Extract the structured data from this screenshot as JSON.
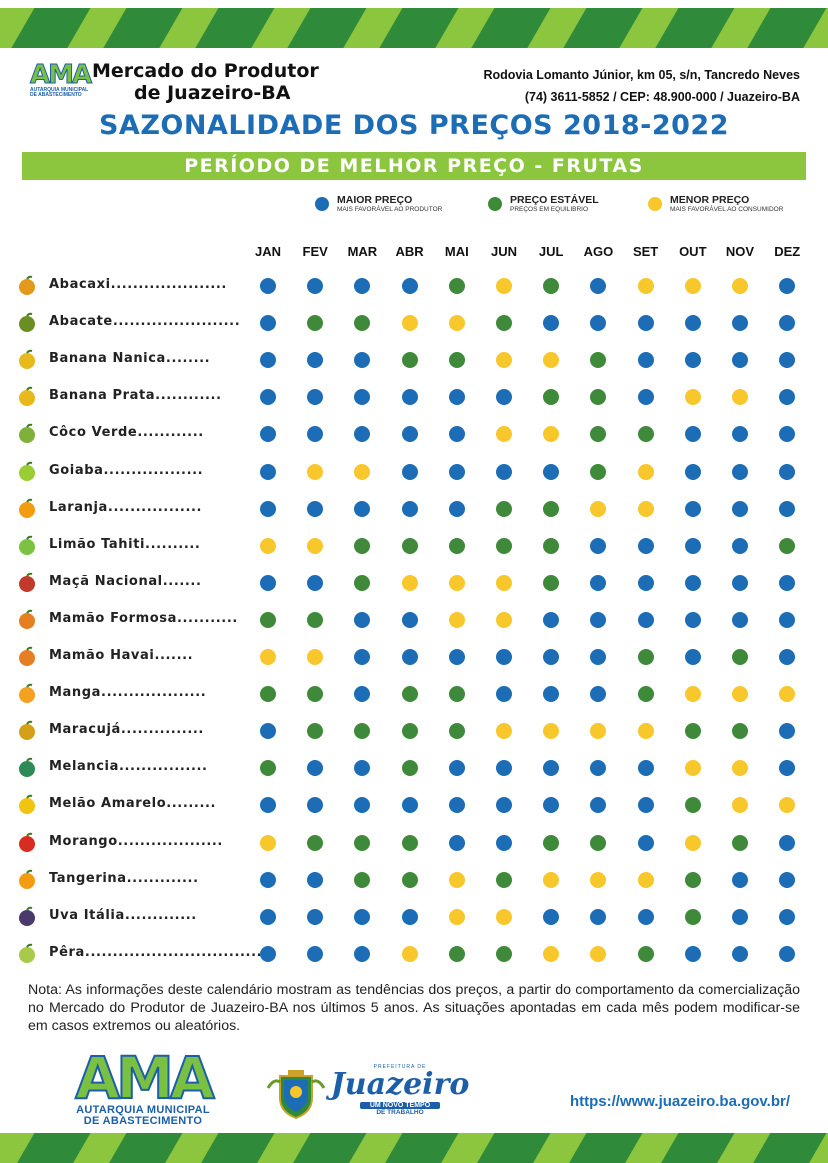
{
  "header": {
    "logo_text": "AMA",
    "logo_sub": "AUTARQUIA MUNICIPAL DE ABASTECIMENTO",
    "brand_line1": "Mercado do Produtor",
    "brand_line2": "de Juazeiro-BA",
    "address_line1": "Rodovia Lomanto Júnior,  km 05,  s/n,  Tancredo Neves",
    "address_line2": "(74)  3611-5852    /  CEP:  48.900-000  / Juazeiro-BA"
  },
  "title": "SAZONALIDADE DOS PREÇOS 2018-2022",
  "subtitle": "PERÍODO DE MELHOR PREÇO - FRUTAS",
  "colors": {
    "blue": "#1c6db5",
    "green": "#3f8a3a",
    "yellow": "#f7c72c",
    "lime": "#8cc63f"
  },
  "legend": [
    {
      "color": "blue",
      "title": "MAIOR PREÇO",
      "subtitle": "MAIS FAVORÁVEL AO PRODUTOR"
    },
    {
      "color": "green",
      "title": "PREÇO ESTÁVEL",
      "subtitle": "PREÇOS EM EQUILIBRIO"
    },
    {
      "color": "yellow",
      "title": "MENOR PREÇO",
      "subtitle": "MAIS FAVORÁVEL AO CONSUMIDOR"
    }
  ],
  "months": [
    "JAN",
    "FEV",
    "MAR",
    "ABR",
    "MAI",
    "JUN",
    "JUL",
    "AGO",
    "SET",
    "OUT",
    "NOV",
    "DEZ"
  ],
  "fruits": [
    {
      "label": "Abacaxi.....................",
      "icon": "pineapple-icon",
      "icon_color": "#e39a1c",
      "values": [
        "B",
        "B",
        "B",
        "B",
        "G",
        "Y",
        "G",
        "B",
        "Y",
        "Y",
        "Y",
        "B"
      ]
    },
    {
      "label": "Abacate.......................",
      "icon": "avocado-icon",
      "icon_color": "#6b8e23",
      "values": [
        "B",
        "G",
        "G",
        "Y",
        "Y",
        "G",
        "B",
        "B",
        "B",
        "B",
        "B",
        "B"
      ]
    },
    {
      "label": "Banana Nanica........",
      "icon": "banana-icon",
      "icon_color": "#e8b91a",
      "values": [
        "B",
        "B",
        "B",
        "G",
        "G",
        "Y",
        "Y",
        "G",
        "B",
        "B",
        "B",
        "B"
      ]
    },
    {
      "label": "Banana Prata............",
      "icon": "banana-icon",
      "icon_color": "#e8b91a",
      "values": [
        "B",
        "B",
        "B",
        "B",
        "B",
        "B",
        "G",
        "G",
        "B",
        "Y",
        "Y",
        "B"
      ]
    },
    {
      "label": "Côco Verde............",
      "icon": "coconut-icon",
      "icon_color": "#7fb03a",
      "values": [
        "B",
        "B",
        "B",
        "B",
        "B",
        "Y",
        "Y",
        "G",
        "G",
        "B",
        "B",
        "B"
      ]
    },
    {
      "label": "Goiaba..................",
      "icon": "guava-icon",
      "icon_color": "#9acd32",
      "values": [
        "B",
        "Y",
        "Y",
        "B",
        "B",
        "B",
        "B",
        "G",
        "Y",
        "B",
        "B",
        "B"
      ]
    },
    {
      "label": "Laranja.................",
      "icon": "orange-icon",
      "icon_color": "#f39c12",
      "values": [
        "B",
        "B",
        "B",
        "B",
        "B",
        "G",
        "G",
        "Y",
        "Y",
        "B",
        "B",
        "B"
      ]
    },
    {
      "label": "Limão Tahiti..........",
      "icon": "lime-icon",
      "icon_color": "#7cc242",
      "values": [
        "Y",
        "Y",
        "G",
        "G",
        "G",
        "G",
        "G",
        "B",
        "B",
        "B",
        "B",
        "G"
      ]
    },
    {
      "label": "Maçã Nacional.......",
      "icon": "apple-icon",
      "icon_color": "#c0392b",
      "values": [
        "B",
        "B",
        "G",
        "Y",
        "Y",
        "Y",
        "G",
        "B",
        "B",
        "B",
        "B",
        "B"
      ]
    },
    {
      "label": "Mamão Formosa...........",
      "icon": "papaya-icon",
      "icon_color": "#e67e22",
      "values": [
        "G",
        "G",
        "B",
        "B",
        "Y",
        "Y",
        "B",
        "B",
        "B",
        "B",
        "B",
        "B"
      ]
    },
    {
      "label": "Mamão Havai.......",
      "icon": "papaya-icon",
      "icon_color": "#e67e22",
      "values": [
        "Y",
        "Y",
        "B",
        "B",
        "B",
        "B",
        "B",
        "B",
        "G",
        "B",
        "G",
        "B"
      ]
    },
    {
      "label": "Manga...................",
      "icon": "mango-icon",
      "icon_color": "#f4a020",
      "values": [
        "G",
        "G",
        "B",
        "G",
        "G",
        "B",
        "B",
        "B",
        "G",
        "Y",
        "Y",
        "Y"
      ]
    },
    {
      "label": "Maracujá...............",
      "icon": "passionfruit-icon",
      "icon_color": "#d4a017",
      "values": [
        "B",
        "G",
        "G",
        "G",
        "G",
        "Y",
        "Y",
        "Y",
        "Y",
        "G",
        "G",
        "B"
      ]
    },
    {
      "label": "Melancia................",
      "icon": "watermelon-icon",
      "icon_color": "#2e8b57",
      "values": [
        "G",
        "B",
        "B",
        "G",
        "B",
        "B",
        "B",
        "B",
        "B",
        "Y",
        "Y",
        "B"
      ]
    },
    {
      "label": "Melão Amarelo.........",
      "icon": "melon-icon",
      "icon_color": "#f1c40f",
      "values": [
        "B",
        "B",
        "B",
        "B",
        "B",
        "B",
        "B",
        "B",
        "B",
        "G",
        "Y",
        "Y"
      ]
    },
    {
      "label": "Morango...................",
      "icon": "strawberry-icon",
      "icon_color": "#d62d20",
      "values": [
        "Y",
        "G",
        "G",
        "G",
        "B",
        "B",
        "G",
        "G",
        "B",
        "Y",
        "G",
        "B"
      ]
    },
    {
      "label": "Tangerina.............",
      "icon": "tangerine-icon",
      "icon_color": "#f39c12",
      "values": [
        "B",
        "B",
        "G",
        "G",
        "Y",
        "G",
        "Y",
        "Y",
        "Y",
        "G",
        "B",
        "B"
      ]
    },
    {
      "label": "Uva Itália.............",
      "icon": "grape-icon",
      "icon_color": "#4a3a6b",
      "values": [
        "B",
        "B",
        "B",
        "B",
        "Y",
        "Y",
        "B",
        "B",
        "B",
        "G",
        "B",
        "B"
      ]
    },
    {
      "label": "Pêra.................................",
      "icon": "pear-icon",
      "icon_color": "#a8c94a",
      "values": [
        "B",
        "B",
        "B",
        "Y",
        "G",
        "G",
        "Y",
        "Y",
        "G",
        "B",
        "B",
        "B"
      ]
    }
  ],
  "note": "Nota: As informações deste calendário mostram as tendências dos preços, a partir do comportamento da comercialização no Mercado do Produtor de Juazeiro-BA nos últimos 5 anos. As situações apontadas em cada mês podem modificar-se em casos extremos ou aleatórios.",
  "footer": {
    "ama_word": "AMA",
    "ama_line1": "AUTARQUIA MUNICIPAL",
    "ama_line2": "DE ABASTECIMENTO",
    "prefeitura_small": "PREFEITURA DE",
    "city_script": "Juazeiro",
    "slogan1": "UM NOVO TEMPO",
    "slogan2": "DE TRABALHO",
    "url": "https://www.juazeiro.ba.gov.br/"
  }
}
